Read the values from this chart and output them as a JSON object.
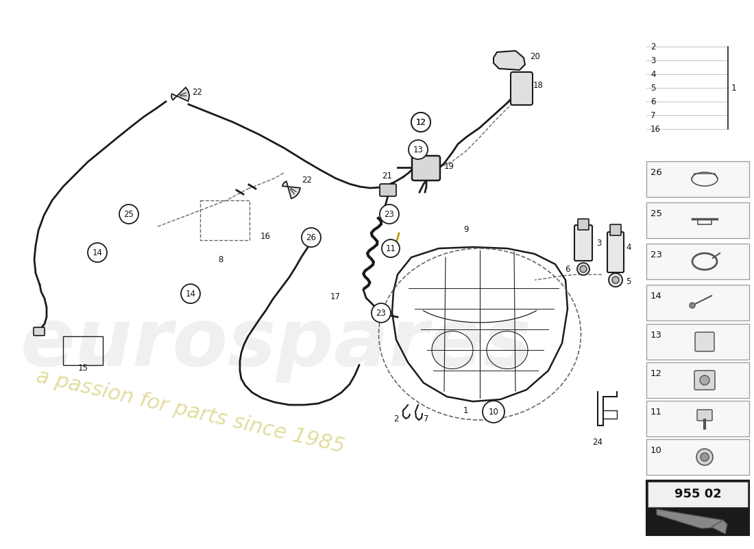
{
  "bg_color": "#ffffff",
  "line_color": "#1a1a1a",
  "dashed_color": "#666666",
  "circle_color": "#1a1a1a",
  "label_color": "#111111",
  "yellow_color": "#b8a000",
  "wm_gray": "#d0d0d0",
  "wm_yellow": "#c8b840"
}
